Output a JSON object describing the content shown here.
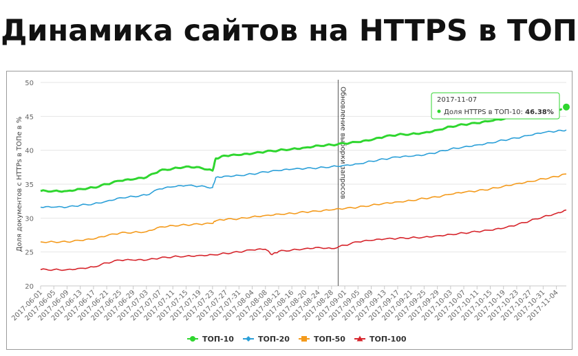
{
  "title": "Динамика сайтов на HTTPS в ТОП",
  "chart_data": {
    "type": "line",
    "ylabel": "Доля документов с HTTPs в ТОПе в %",
    "ylim": [
      20,
      50
    ],
    "yticks": [
      "20",
      "25",
      "30",
      "35",
      "40",
      "45",
      "50"
    ],
    "grid": "horizontal",
    "legend_position": "bottom",
    "annotation": {
      "label": "Обновление выборки запросов",
      "x": "2017-08-30"
    },
    "tooltip": {
      "date": "2017-11-07",
      "series": "Доля HTTPS в ТОП-10",
      "value": "46.38%"
    },
    "x_start": "2017-06-01",
    "x_end": "2017-11-07",
    "x_ticks": [
      "2017-06-01",
      "2017-06-05",
      "2017-06-09",
      "2017-06-13",
      "2017-06-17",
      "2017-06-21",
      "2017-06-25",
      "2017-06-29",
      "2017-07-03",
      "2017-07-07",
      "2017-07-11",
      "2017-07-15",
      "2017-07-19",
      "2017-07-23",
      "2017-07-27",
      "2017-07-31",
      "2017-08-04",
      "2017-08-08",
      "2017-08-12",
      "2017-08-16",
      "2017-08-20",
      "2017-08-24",
      "2017-08-28",
      "2017-09-01",
      "2017-09-05",
      "2017-09-09",
      "2017-09-13",
      "2017-09-17",
      "2017-09-21",
      "2017-09-25",
      "2017-09-29",
      "2017-10-03",
      "2017-10-07",
      "2017-10-11",
      "2017-10-15",
      "2017-10-19",
      "2017-10-23",
      "2017-10-27",
      "2017-10-31",
      "2017-11-04"
    ],
    "series": [
      {
        "name": "ТОП-10",
        "color": "#2fd62f",
        "points": [
          [
            "2017-06-01",
            34.0
          ],
          [
            "2017-06-05",
            34.0
          ],
          [
            "2017-06-09",
            34.0
          ],
          [
            "2017-06-13",
            34.3
          ],
          [
            "2017-06-17",
            34.5
          ],
          [
            "2017-06-21",
            35.0
          ],
          [
            "2017-06-25",
            35.5
          ],
          [
            "2017-06-29",
            35.7
          ],
          [
            "2017-07-03",
            36.0
          ],
          [
            "2017-07-07",
            37.0
          ],
          [
            "2017-07-11",
            37.3
          ],
          [
            "2017-07-15",
            37.6
          ],
          [
            "2017-07-19",
            37.5
          ],
          [
            "2017-07-23",
            37.0
          ],
          [
            "2017-07-24",
            38.8
          ],
          [
            "2017-07-27",
            39.2
          ],
          [
            "2017-07-31",
            39.3
          ],
          [
            "2017-08-04",
            39.5
          ],
          [
            "2017-08-08",
            39.8
          ],
          [
            "2017-08-12",
            40.0
          ],
          [
            "2017-08-16",
            40.2
          ],
          [
            "2017-08-20",
            40.4
          ],
          [
            "2017-08-24",
            40.7
          ],
          [
            "2017-08-28",
            40.8
          ],
          [
            "2017-09-01",
            41.0
          ],
          [
            "2017-09-05",
            41.2
          ],
          [
            "2017-09-09",
            41.5
          ],
          [
            "2017-09-13",
            42.0
          ],
          [
            "2017-09-17",
            42.3
          ],
          [
            "2017-09-21",
            42.4
          ],
          [
            "2017-09-25",
            42.6
          ],
          [
            "2017-09-29",
            43.0
          ],
          [
            "2017-10-03",
            43.5
          ],
          [
            "2017-10-07",
            43.8
          ],
          [
            "2017-10-11",
            44.0
          ],
          [
            "2017-10-15",
            44.3
          ],
          [
            "2017-10-19",
            44.6
          ],
          [
            "2017-10-23",
            45.0
          ],
          [
            "2017-10-27",
            45.3
          ],
          [
            "2017-10-31",
            45.6
          ],
          [
            "2017-11-04",
            45.9
          ],
          [
            "2017-11-07",
            46.38
          ]
        ]
      },
      {
        "name": "ТОП-20",
        "color": "#2a9fd8",
        "points": [
          [
            "2017-06-01",
            31.6
          ],
          [
            "2017-06-05",
            31.6
          ],
          [
            "2017-06-09",
            31.6
          ],
          [
            "2017-06-13",
            31.9
          ],
          [
            "2017-06-17",
            32.1
          ],
          [
            "2017-06-21",
            32.5
          ],
          [
            "2017-06-25",
            33.0
          ],
          [
            "2017-06-29",
            33.2
          ],
          [
            "2017-07-03",
            33.4
          ],
          [
            "2017-07-07",
            34.3
          ],
          [
            "2017-07-11",
            34.6
          ],
          [
            "2017-07-15",
            34.8
          ],
          [
            "2017-07-19",
            34.7
          ],
          [
            "2017-07-23",
            34.5
          ],
          [
            "2017-07-24",
            36.0
          ],
          [
            "2017-07-27",
            36.2
          ],
          [
            "2017-07-31",
            36.3
          ],
          [
            "2017-08-04",
            36.5
          ],
          [
            "2017-08-08",
            36.8
          ],
          [
            "2017-08-12",
            37.0
          ],
          [
            "2017-08-16",
            37.2
          ],
          [
            "2017-08-20",
            37.3
          ],
          [
            "2017-08-24",
            37.4
          ],
          [
            "2017-08-28",
            37.6
          ],
          [
            "2017-09-01",
            37.8
          ],
          [
            "2017-09-05",
            38.0
          ],
          [
            "2017-09-09",
            38.4
          ],
          [
            "2017-09-13",
            38.7
          ],
          [
            "2017-09-17",
            39.0
          ],
          [
            "2017-09-21",
            39.1
          ],
          [
            "2017-09-25",
            39.3
          ],
          [
            "2017-09-29",
            39.7
          ],
          [
            "2017-10-03",
            40.2
          ],
          [
            "2017-10-07",
            40.5
          ],
          [
            "2017-10-11",
            40.8
          ],
          [
            "2017-10-15",
            41.1
          ],
          [
            "2017-10-19",
            41.5
          ],
          [
            "2017-10-23",
            41.8
          ],
          [
            "2017-10-27",
            42.2
          ],
          [
            "2017-10-31",
            42.6
          ],
          [
            "2017-11-04",
            42.8
          ],
          [
            "2017-11-07",
            43.0
          ]
        ]
      },
      {
        "name": "ТОП-50",
        "color": "#f49a1b",
        "points": [
          [
            "2017-06-01",
            26.5
          ],
          [
            "2017-06-05",
            26.5
          ],
          [
            "2017-06-09",
            26.5
          ],
          [
            "2017-06-13",
            26.7
          ],
          [
            "2017-06-17",
            26.9
          ],
          [
            "2017-06-21",
            27.4
          ],
          [
            "2017-06-25",
            27.8
          ],
          [
            "2017-06-29",
            27.9
          ],
          [
            "2017-07-03",
            28.0
          ],
          [
            "2017-07-07",
            28.7
          ],
          [
            "2017-07-11",
            28.9
          ],
          [
            "2017-07-15",
            29.0
          ],
          [
            "2017-07-19",
            29.1
          ],
          [
            "2017-07-23",
            29.2
          ],
          [
            "2017-07-24",
            29.6
          ],
          [
            "2017-07-27",
            29.8
          ],
          [
            "2017-07-31",
            29.9
          ],
          [
            "2017-08-04",
            30.2
          ],
          [
            "2017-08-08",
            30.4
          ],
          [
            "2017-08-12",
            30.6
          ],
          [
            "2017-08-16",
            30.7
          ],
          [
            "2017-08-20",
            30.9
          ],
          [
            "2017-08-24",
            31.0
          ],
          [
            "2017-08-28",
            31.2
          ],
          [
            "2017-09-01",
            31.4
          ],
          [
            "2017-09-05",
            31.6
          ],
          [
            "2017-09-09",
            31.9
          ],
          [
            "2017-09-13",
            32.2
          ],
          [
            "2017-09-17",
            32.4
          ],
          [
            "2017-09-21",
            32.6
          ],
          [
            "2017-09-25",
            32.9
          ],
          [
            "2017-09-29",
            33.1
          ],
          [
            "2017-10-03",
            33.5
          ],
          [
            "2017-10-07",
            33.8
          ],
          [
            "2017-10-11",
            34.0
          ],
          [
            "2017-10-15",
            34.3
          ],
          [
            "2017-10-19",
            34.7
          ],
          [
            "2017-10-23",
            35.1
          ],
          [
            "2017-10-27",
            35.4
          ],
          [
            "2017-10-31",
            35.8
          ],
          [
            "2017-11-04",
            36.1
          ],
          [
            "2017-11-07",
            36.5
          ]
        ]
      },
      {
        "name": "ТОП-100",
        "color": "#d6232a",
        "points": [
          [
            "2017-06-01",
            22.4
          ],
          [
            "2017-06-05",
            22.4
          ],
          [
            "2017-06-09",
            22.4
          ],
          [
            "2017-06-13",
            22.6
          ],
          [
            "2017-06-17",
            22.8
          ],
          [
            "2017-06-21",
            23.4
          ],
          [
            "2017-06-25",
            23.8
          ],
          [
            "2017-06-29",
            23.8
          ],
          [
            "2017-07-03",
            23.8
          ],
          [
            "2017-07-07",
            24.1
          ],
          [
            "2017-07-11",
            24.3
          ],
          [
            "2017-07-15",
            24.4
          ],
          [
            "2017-07-19",
            24.5
          ],
          [
            "2017-07-23",
            24.6
          ],
          [
            "2017-07-27",
            24.8
          ],
          [
            "2017-07-31",
            25.0
          ],
          [
            "2017-08-04",
            25.3
          ],
          [
            "2017-08-08",
            25.4
          ],
          [
            "2017-08-10",
            24.6
          ],
          [
            "2017-08-12",
            25.1
          ],
          [
            "2017-08-16",
            25.3
          ],
          [
            "2017-08-20",
            25.5
          ],
          [
            "2017-08-24",
            25.7
          ],
          [
            "2017-08-28",
            25.5
          ],
          [
            "2017-09-01",
            26.0
          ],
          [
            "2017-09-05",
            26.5
          ],
          [
            "2017-09-09",
            26.7
          ],
          [
            "2017-09-13",
            26.9
          ],
          [
            "2017-09-17",
            27.0
          ],
          [
            "2017-09-21",
            27.1
          ],
          [
            "2017-09-25",
            27.2
          ],
          [
            "2017-09-29",
            27.4
          ],
          [
            "2017-10-03",
            27.6
          ],
          [
            "2017-10-07",
            27.8
          ],
          [
            "2017-10-11",
            28.0
          ],
          [
            "2017-10-15",
            28.2
          ],
          [
            "2017-10-19",
            28.5
          ],
          [
            "2017-10-23",
            29.0
          ],
          [
            "2017-10-27",
            29.6
          ],
          [
            "2017-10-31",
            30.2
          ],
          [
            "2017-11-04",
            30.7
          ],
          [
            "2017-11-07",
            31.2
          ]
        ]
      }
    ]
  }
}
